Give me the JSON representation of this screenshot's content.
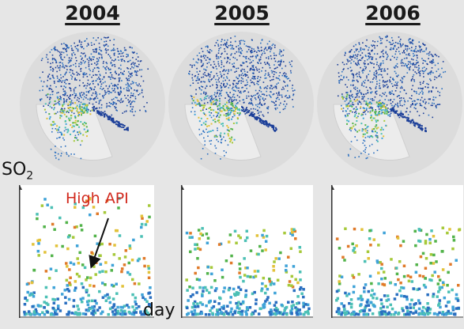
{
  "chart_data": {
    "type": "scatter",
    "panels": [
      {
        "title": "2004"
      },
      {
        "title": "2005"
      },
      {
        "title": "2006"
      }
    ],
    "ylabel_main": "SO",
    "ylabel_sub": "2",
    "xlabel": "day",
    "annotation": "High API",
    "colors": [
      "#1c3f99",
      "#2a6fc0",
      "#3fa3d8",
      "#4cc0b5",
      "#52b34a",
      "#a6c93a",
      "#e2c23a",
      "#e07a2a",
      "#d2361e"
    ],
    "annotation_color": "#d22a1e"
  }
}
